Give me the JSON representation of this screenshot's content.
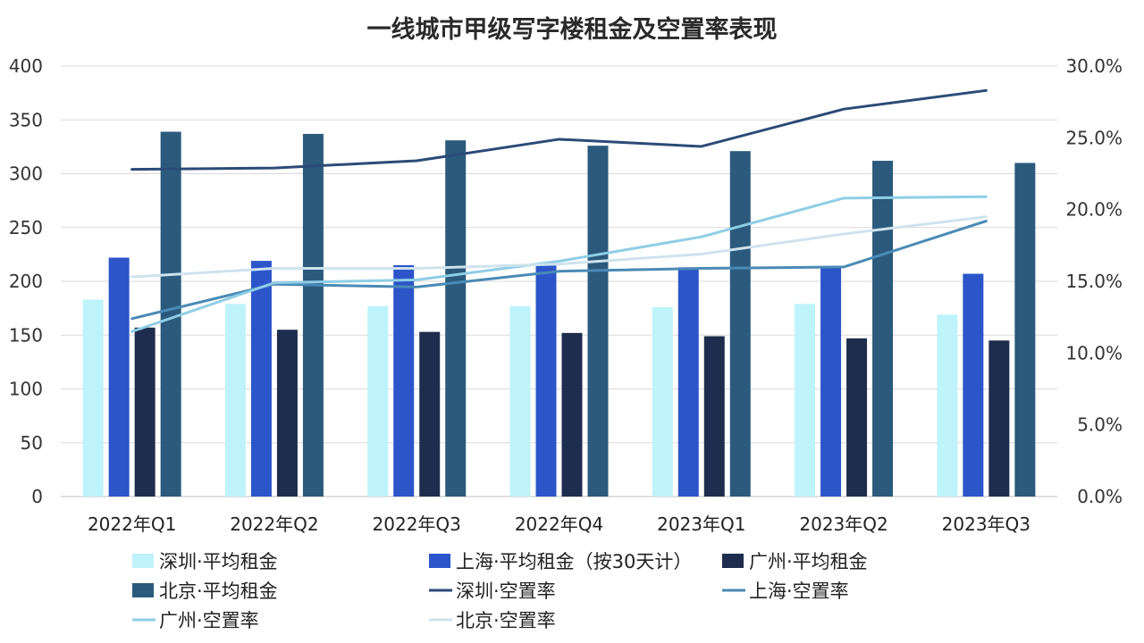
{
  "chart_data": {
    "type": "bar",
    "title": "一线城市甲级写字楼租金及空置率表现",
    "categories": [
      "2022年Q1",
      "2022年Q2",
      "2022年Q3",
      "2022年Q4",
      "2023年Q1",
      "2023年Q2",
      "2023年Q3"
    ],
    "y_left": {
      "min": 0,
      "max": 400,
      "ticks": [
        "0",
        "50",
        "100",
        "150",
        "200",
        "250",
        "300",
        "350",
        "400"
      ]
    },
    "y_right": {
      "min": 0,
      "max": 30,
      "ticks": [
        "0.0%",
        "5.0%",
        "10.0%",
        "15.0%",
        "20.0%",
        "25.0%",
        "30.0%"
      ]
    },
    "grid": true,
    "legend_position": "bottom",
    "bar_series": [
      {
        "name": "深圳·平均租金",
        "color": "#bff3fb",
        "values": [
          183,
          179,
          177,
          177,
          176,
          179,
          169
        ]
      },
      {
        "name": "上海·平均租金（按30天计）",
        "color": "#2c55c9",
        "values": [
          222,
          219,
          215,
          215,
          213,
          214,
          207
        ]
      },
      {
        "name": "广州·平均租金",
        "color": "#1e2d4d",
        "values": [
          157,
          155,
          153,
          152,
          149,
          147,
          145
        ]
      },
      {
        "name": "北京·平均租金",
        "color": "#2b5a7c",
        "values": [
          339,
          337,
          331,
          326,
          321,
          312,
          310
        ]
      }
    ],
    "line_series": [
      {
        "name": "深圳·空置率",
        "color": "#2c4a78",
        "values": [
          22.8,
          22.9,
          23.4,
          24.9,
          24.4,
          27.0,
          28.3
        ]
      },
      {
        "name": "上海·空置率",
        "color": "#4a8ab6",
        "values": [
          12.4,
          14.8,
          14.6,
          15.7,
          15.9,
          16.0,
          19.2
        ]
      },
      {
        "name": "广州·空置率",
        "color": "#8fcde6",
        "values": [
          11.5,
          14.9,
          15.1,
          16.4,
          18.1,
          20.8,
          20.9
        ]
      },
      {
        "name": "北京·空置率",
        "color": "#cfe3ee",
        "values": [
          15.3,
          15.9,
          15.9,
          16.2,
          16.9,
          18.3,
          19.5
        ]
      }
    ]
  }
}
